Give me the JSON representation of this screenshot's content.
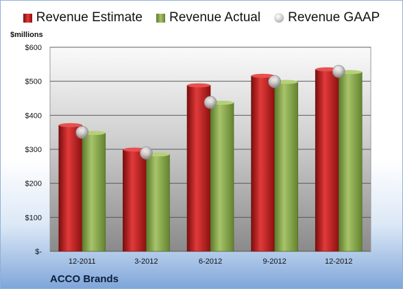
{
  "unit_label": "$millions",
  "company": "ACCO Brands",
  "colors": {
    "estimate": "#c81e1e",
    "actual": "#8fae4d",
    "gaap": "#c8c8c8"
  },
  "chart_data": {
    "type": "bar",
    "categories": [
      "12-2011",
      "3-2012",
      "6-2012",
      "9-2012",
      "12-2012"
    ],
    "series": [
      {
        "name": "Revenue Estimate",
        "values": [
          371,
          299,
          488,
          516,
          535
        ]
      },
      {
        "name": "Revenue Actual",
        "values": [
          348,
          285,
          437,
          498,
          527
        ]
      },
      {
        "name": "Revenue GAAP",
        "values": [
          350,
          289,
          438,
          499,
          529
        ]
      }
    ],
    "y_tick_labels": [
      "$-",
      "$100",
      "$200",
      "$300",
      "$400",
      "$500",
      "$600"
    ],
    "ylim": [
      0,
      600
    ],
    "ylabel": "$millions",
    "xlabel": "",
    "grid": true,
    "legend": "top"
  }
}
